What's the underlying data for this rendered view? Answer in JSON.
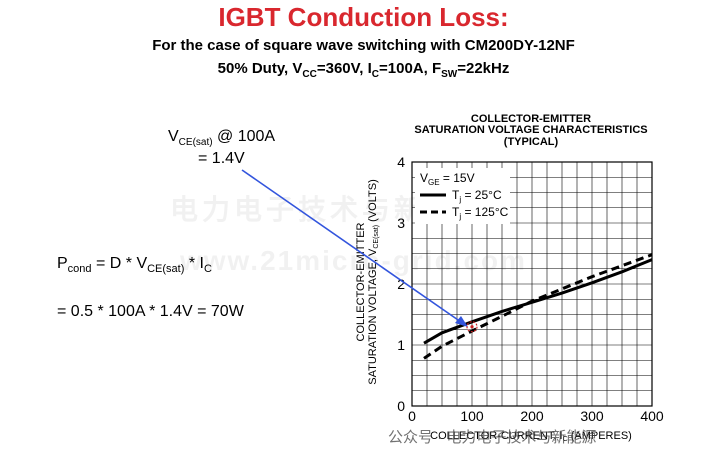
{
  "header": {
    "title": "IGBT Conduction Loss:",
    "line1": "For the case of square wave switching with CM200DY-12NF",
    "line2": {
      "duty": "50% Duty, V",
      "vcc_sub": "CC",
      "vcc_val": "=360V, I",
      "ic_sub": "C",
      "ic_val": "=100A, F",
      "fsw_sub": "SW",
      "fsw_val": "=22kHz"
    }
  },
  "annotation": {
    "v_main": "V",
    "v_sub": "CE(sat)",
    "at": " @ 100A",
    "value": "= 1.4V"
  },
  "formula": {
    "p": "P",
    "p_sub": "cond",
    "eq1": " = D * V",
    "v_sub": "CE(sat)",
    "eq2": " * I",
    "i_sub": "C",
    "line2": "= 0.5 * 100A * 1.4V = 70W"
  },
  "watermarks": {
    "cn": "电力电子技术与新能源",
    "url": "www.21micro-grid.com",
    "wechat": "公众号 · 电力电子技术与新能源"
  },
  "chart_data": {
    "type": "line",
    "title": [
      "COLLECTOR-EMITTER",
      "SATURATION VOLTAGE CHARACTERISTICS",
      "(TYPICAL)"
    ],
    "xlabel": "COLLECTOR-CURRENT, I",
    "xlabel_sub": "C",
    "xlabel_tail": " (AMPERES)",
    "ylabel_line1": "COLLECTOR-EMITTER",
    "ylabel_line2": "SATURATION VOLTAGE, V",
    "ylabel_sub": "CE(sat)",
    "ylabel_tail": " (VOLTS)",
    "xlim": [
      0,
      400
    ],
    "ylim": [
      0,
      4
    ],
    "xticks": [
      0,
      100,
      200,
      300,
      400
    ],
    "yticks": [
      0,
      1,
      2,
      3,
      4
    ],
    "grid": true,
    "condition": "V",
    "condition_sub": "GE",
    "condition_tail": " = 15V",
    "series": [
      {
        "name": "T",
        "name_sub": "j",
        "name_tail": " = 25°C",
        "style": "solid",
        "x": [
          20,
          50,
          100,
          150,
          200,
          250,
          300,
          350,
          400
        ],
        "y": [
          1.03,
          1.2,
          1.38,
          1.55,
          1.7,
          1.85,
          2.02,
          2.2,
          2.4
        ]
      },
      {
        "name": "T",
        "name_sub": "j",
        "name_tail": " = 125°C",
        "style": "dashed",
        "x": [
          20,
          50,
          100,
          150,
          200,
          250,
          300,
          350,
          400
        ],
        "y": [
          0.78,
          0.98,
          1.23,
          1.47,
          1.72,
          1.92,
          2.12,
          2.3,
          2.48
        ]
      }
    ],
    "marker": {
      "x": 100,
      "y": 1.3
    }
  }
}
